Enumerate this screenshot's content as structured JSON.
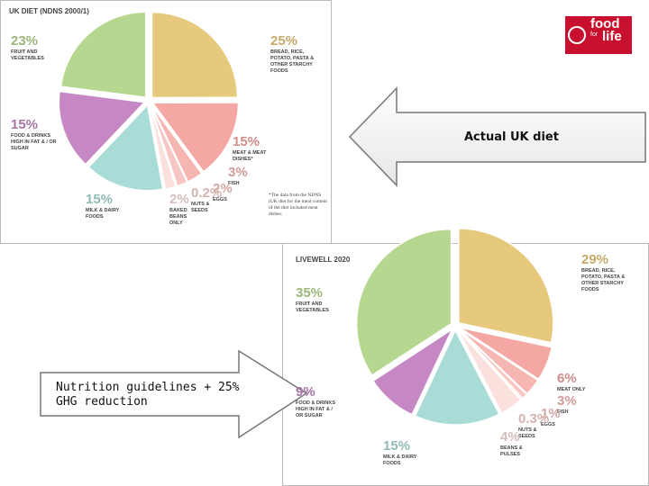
{
  "chart_data": [
    {
      "type": "pie",
      "title": "UK DIET (NDNS 2000/1)",
      "categories": [
        "BREAD, RICE, POTATO, PASTA & OTHER STARCHY FOODS",
        "MEAT & MEAT DISHES*",
        "FISH",
        "EGGS",
        "NUTS & SEEDS",
        "BAKED BEANS ONLY",
        "MILK & DAIRY FOODS",
        "FOOD & DRINKS HIGH IN FAT & / OR SUGAR",
        "FRUIT AND VEGETABLES"
      ],
      "values": [
        25,
        15,
        3,
        2,
        0.2,
        2,
        15,
        15,
        23
      ],
      "value_labels": [
        "25%",
        "15%",
        "3%",
        "2%",
        "0.2%",
        "2%",
        "15%",
        "15%",
        "23%"
      ],
      "colors": [
        "#e6c97c",
        "#f4a7a3",
        "#f6b6b2",
        "#f8c6c2",
        "#fad4d1",
        "#fbe1de",
        "#a9dcd7",
        "#c688c4",
        "#b6d78f"
      ],
      "note": "*The data from the NDNS (UK diet for the meat content of the diet included meat dishes."
    },
    {
      "type": "pie",
      "title": "LIVEWELL 2020",
      "categories": [
        "BREAD, RICE, POTATO, PASTA & OTHER STARCHY FOODS",
        "MEAT ONLY",
        "FISH",
        "EGGS",
        "NUTS & SEEDS",
        "BEANS & PULSES",
        "MILK & DAIRY FOODS",
        "FOOD & DRINKS HIGH IN FAT & / OR SUGAR",
        "FRUIT AND VEGETABLES"
      ],
      "values": [
        29,
        6,
        3,
        1,
        0.3,
        4,
        15,
        9,
        35
      ],
      "value_labels": [
        "29%",
        "6%",
        "3%",
        "1%",
        "0.3%",
        "4%",
        "15%",
        "9%",
        "35%"
      ],
      "colors": [
        "#e6c97c",
        "#f4a7a3",
        "#f6b6b2",
        "#f8c6c2",
        "#fad4d1",
        "#fbe1de",
        "#a9dcd7",
        "#c688c4",
        "#b6d78f"
      ]
    }
  ],
  "callouts": {
    "top": "Actual UK diet",
    "bottom": "Nutrition guidelines + 25% GHG reduction"
  },
  "logo": {
    "word1": "food",
    "word2": "for",
    "word3": "life"
  }
}
